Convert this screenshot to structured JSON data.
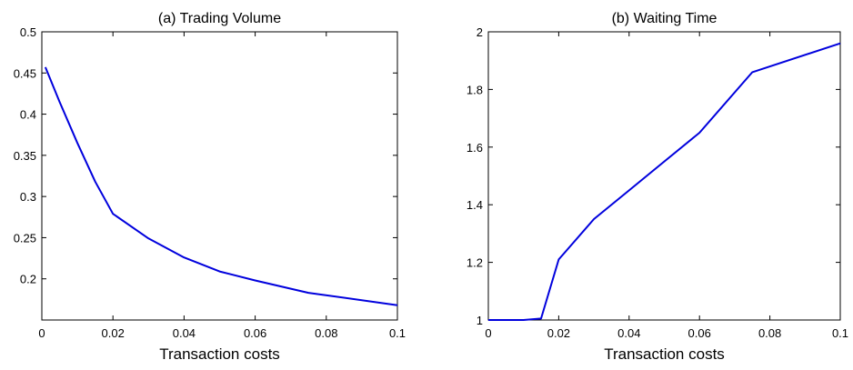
{
  "chart_data": [
    {
      "type": "line",
      "title": "(a) Trading Volume",
      "xlabel": "Transaction costs",
      "ylabel": "",
      "xlim": [
        0,
        0.1
      ],
      "ylim": [
        0.15,
        0.5
      ],
      "xticks": [
        0,
        0.02,
        0.04,
        0.06,
        0.08,
        0.1
      ],
      "xtick_labels": [
        "0",
        "0.02",
        "0.04",
        "0.06",
        "0.08",
        "0.1"
      ],
      "yticks": [
        0.2,
        0.25,
        0.3,
        0.35,
        0.4,
        0.45,
        0.5
      ],
      "ytick_labels": [
        "0.2",
        "0.25",
        "0.3",
        "0.35",
        "0.4",
        "0.45",
        "0.5"
      ],
      "grid": false,
      "color": "#0000dd",
      "series": [
        {
          "x": [
            0.001,
            0.005,
            0.01,
            0.015,
            0.02,
            0.03,
            0.04,
            0.05,
            0.06,
            0.075,
            0.1
          ],
          "y": [
            0.457,
            0.415,
            0.365,
            0.318,
            0.279,
            0.249,
            0.226,
            0.209,
            0.198,
            0.183,
            0.168
          ]
        }
      ]
    },
    {
      "type": "line",
      "title": "(b) Waiting Time",
      "xlabel": "Transaction costs",
      "ylabel": "",
      "xlim": [
        0,
        0.1
      ],
      "ylim": [
        1,
        2
      ],
      "xticks": [
        0,
        0.02,
        0.04,
        0.06,
        0.08,
        0.1
      ],
      "xtick_labels": [
        "0",
        "0.02",
        "0.04",
        "0.06",
        "0.08",
        "0.1"
      ],
      "yticks": [
        1,
        1.2,
        1.4,
        1.6,
        1.8,
        2
      ],
      "ytick_labels": [
        "1",
        "1.2",
        "1.4",
        "1.6",
        "1.8",
        "2"
      ],
      "grid": false,
      "color": "#0000dd",
      "series": [
        {
          "x": [
            0,
            0.005,
            0.01,
            0.015,
            0.02,
            0.03,
            0.04,
            0.05,
            0.06,
            0.075,
            0.1
          ],
          "y": [
            1.0,
            1.0,
            1.0,
            1.005,
            1.21,
            1.35,
            1.45,
            1.55,
            1.65,
            1.86,
            1.96
          ]
        }
      ]
    }
  ]
}
